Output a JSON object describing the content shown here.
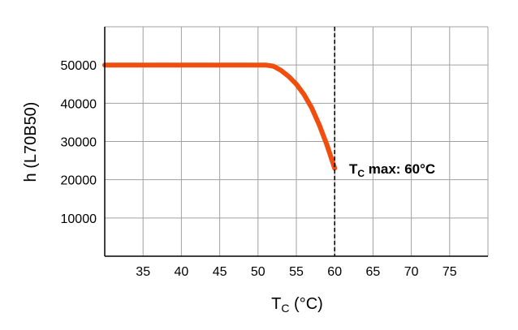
{
  "chart_data": {
    "type": "line",
    "xlabel_main": "T",
    "xlabel_sub": "C",
    "xlabel_unit": " (°C)",
    "ylabel": "h (L70B50)",
    "xlim": [
      30,
      80
    ],
    "ylim": [
      0,
      60000
    ],
    "grid": true,
    "x_ticks": [
      35,
      40,
      45,
      50,
      55,
      60,
      65,
      70,
      75
    ],
    "y_ticks": [
      10000,
      20000,
      30000,
      40000,
      50000
    ],
    "y_tick_labels": [
      "10000",
      "20000",
      "30000",
      "40000",
      "50000"
    ],
    "series": [
      {
        "color": "#f04e0f",
        "x": [
          30,
          51,
          52,
          53,
          54,
          55,
          56,
          57,
          58,
          59,
          60
        ],
        "y": [
          50000,
          50000,
          49700,
          48600,
          47000,
          45000,
          42300,
          38800,
          34300,
          29000,
          23000
        ]
      }
    ],
    "annotation": {
      "x": 60,
      "label_main": "T",
      "label_sub": "C",
      "label_rest": " max: 60°C"
    }
  }
}
